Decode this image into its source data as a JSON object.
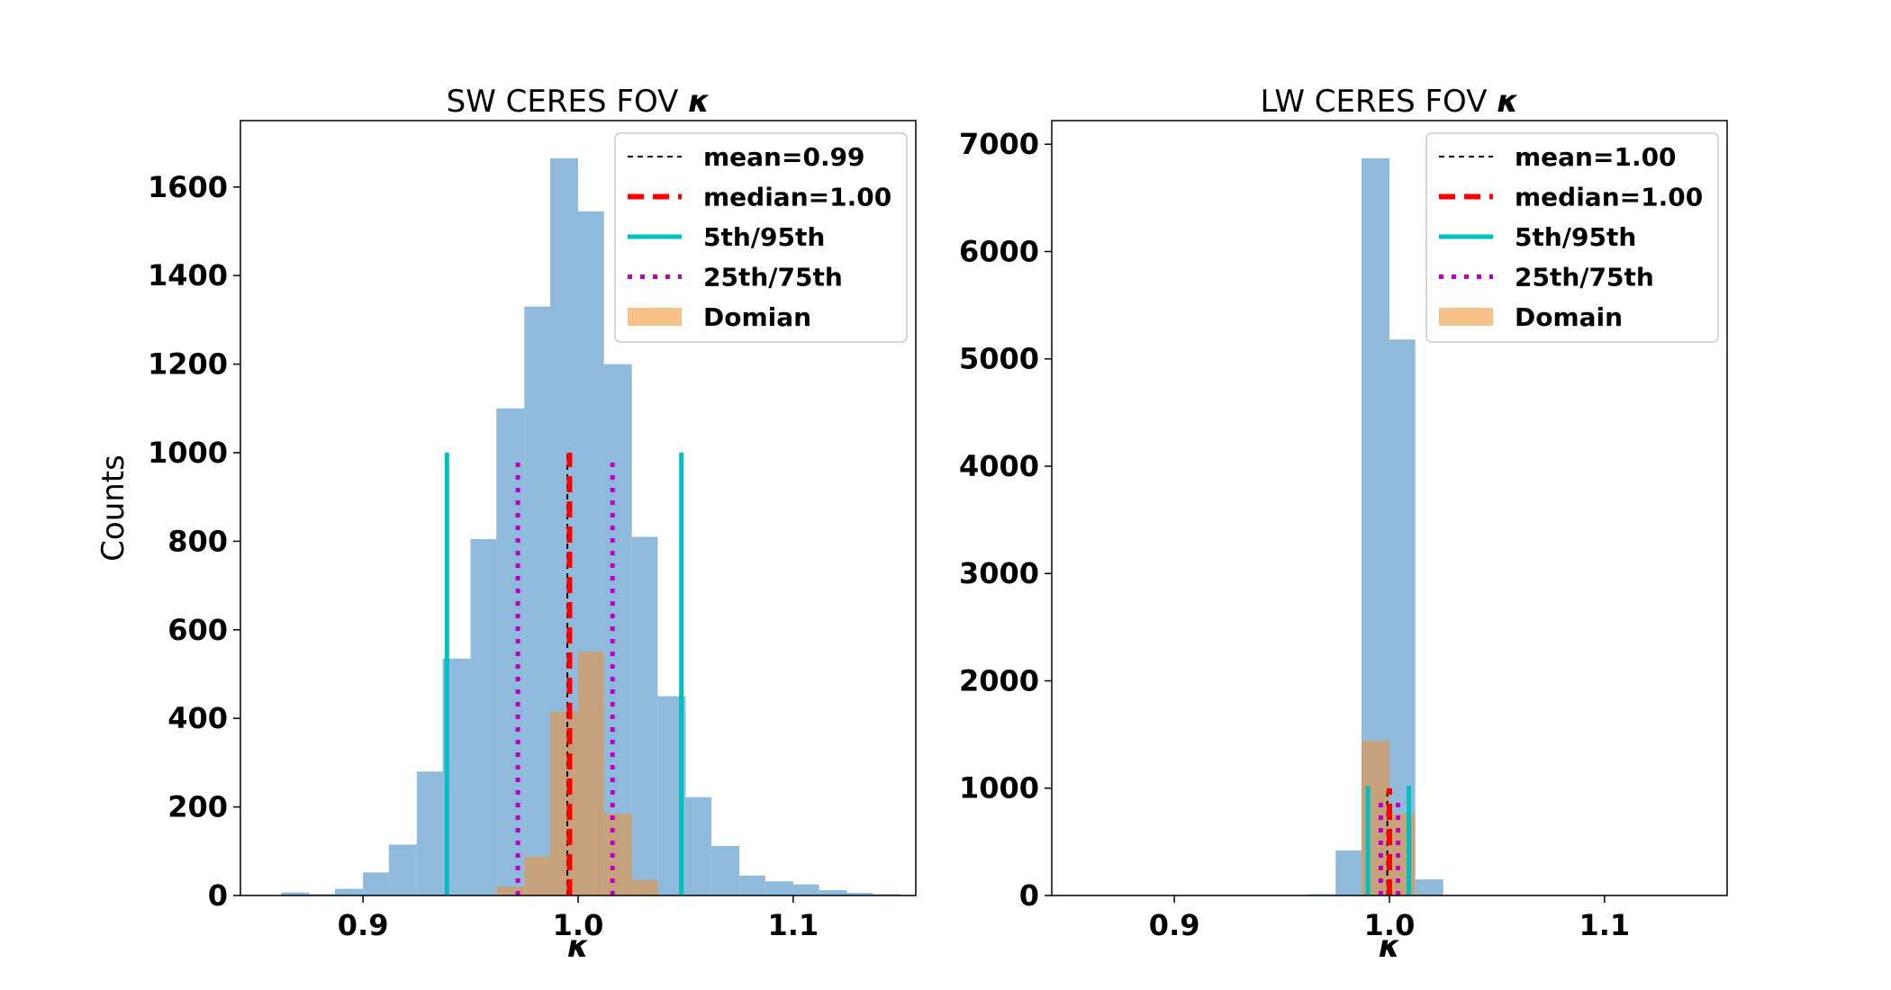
{
  "chart_data": [
    {
      "type": "bar",
      "subtype": "histogram",
      "title": "SW CERES FOV",
      "title_symbol": "κ",
      "xlabel": "κ",
      "ylabel": "Counts",
      "xlim": [
        0.843,
        1.157
      ],
      "ylim": [
        0,
        1750
      ],
      "xticks": [
        0.9,
        1.0,
        1.1
      ],
      "xtick_labels": [
        "0.9",
        "1.0",
        "1.1"
      ],
      "yticks": [
        0,
        200,
        400,
        600,
        800,
        1000,
        1200,
        1400,
        1600
      ],
      "ytick_labels": [
        "0",
        "200",
        "400",
        "600",
        "800",
        "1000",
        "1200",
        "1400",
        "1600"
      ],
      "legend_position": "top-right",
      "series": [
        {
          "name": "Domian",
          "kind": "histogram",
          "color": "#f5a35c",
          "bins": [
            [
              0.85,
              0.862,
              0
            ],
            [
              0.862,
              0.875,
              7
            ],
            [
              0.875,
              0.887,
              3
            ],
            [
              0.887,
              0.9,
              15
            ],
            [
              0.9,
              0.912,
              52
            ],
            [
              0.912,
              0.925,
              115
            ],
            [
              0.925,
              0.937,
              280
            ],
            [
              0.937,
              0.95,
              535
            ],
            [
              0.95,
              0.962,
              805
            ],
            [
              0.962,
              0.975,
              1100
            ],
            [
              0.975,
              0.987,
              1330
            ],
            [
              0.987,
              1.0,
              1665
            ],
            [
              1.0,
              1.012,
              1545
            ],
            [
              1.012,
              1.025,
              1200
            ],
            [
              1.025,
              1.037,
              810
            ],
            [
              1.037,
              1.05,
              450
            ],
            [
              1.05,
              1.062,
              222
            ],
            [
              1.062,
              1.075,
              112
            ],
            [
              1.075,
              1.087,
              45
            ],
            [
              1.087,
              1.1,
              32
            ],
            [
              1.1,
              1.112,
              25
            ],
            [
              1.112,
              1.125,
              12
            ],
            [
              1.125,
              1.137,
              6
            ],
            [
              1.137,
              1.15,
              3
            ]
          ],
          "blue_color": "#7fb0d6"
        },
        {
          "name": "Domian",
          "kind": "histogram-domain",
          "color": "#f5a35c",
          "bins": [
            [
              0.962,
              0.975,
              20
            ],
            [
              0.975,
              0.987,
              88
            ],
            [
              0.987,
              1.0,
              415
            ],
            [
              1.0,
              1.012,
              550
            ],
            [
              1.012,
              1.025,
              185
            ],
            [
              1.025,
              1.037,
              35
            ]
          ]
        }
      ],
      "stat_lines": [
        {
          "name": "mean=0.99",
          "style": "dashed-thin",
          "color": "#000000",
          "x": [
            0.995
          ],
          "height": 1000
        },
        {
          "name": "median=1.00",
          "style": "dashed-thick",
          "color": "#ff0000",
          "x": [
            0.996
          ],
          "height": 1000
        },
        {
          "name": "5th/95th",
          "style": "solid",
          "color": "#00bfbf",
          "x": [
            0.939,
            1.048
          ],
          "height": 1000
        },
        {
          "name": "25th/75th",
          "style": "dotted",
          "color": "#bf00bf",
          "x": [
            0.972,
            1.016
          ],
          "height": 980
        }
      ],
      "legend": [
        "mean=0.99",
        "median=1.00",
        "5th/95th",
        "25th/75th",
        "Domian"
      ]
    },
    {
      "type": "bar",
      "subtype": "histogram",
      "title": "LW CERES FOV",
      "title_symbol": "κ",
      "xlabel": "κ",
      "ylabel": "",
      "xlim": [
        0.843,
        1.157
      ],
      "ylim": [
        0,
        7220
      ],
      "xticks": [
        0.9,
        1.0,
        1.1
      ],
      "xtick_labels": [
        "0.9",
        "1.0",
        "1.1"
      ],
      "yticks": [
        0,
        1000,
        2000,
        3000,
        4000,
        5000,
        6000,
        7000
      ],
      "ytick_labels": [
        "0",
        "1000",
        "2000",
        "3000",
        "4000",
        "5000",
        "6000",
        "7000"
      ],
      "legend_position": "top-right",
      "series": [
        {
          "name": "Domain",
          "kind": "histogram",
          "color": "#f5a35c",
          "bins": [
            [
              0.962,
              0.975,
              12
            ],
            [
              0.975,
              0.987,
              420
            ],
            [
              0.987,
              1.0,
              6870
            ],
            [
              1.0,
              1.012,
              5180
            ],
            [
              1.012,
              1.025,
              150
            ]
          ],
          "blue_color": "#7fb0d6"
        },
        {
          "name": "Domain",
          "kind": "histogram-domain",
          "color": "#f5a35c",
          "bins": [
            [
              0.987,
              1.0,
              1440
            ],
            [
              1.0,
              1.012,
              760
            ]
          ]
        }
      ],
      "stat_lines": [
        {
          "name": "mean=1.00",
          "style": "dashed-thin",
          "color": "#000000",
          "x": [
            0.999
          ],
          "height": 1000
        },
        {
          "name": "median=1.00",
          "style": "dashed-thick",
          "color": "#ff0000",
          "x": [
            1.0
          ],
          "height": 1000
        },
        {
          "name": "5th/95th",
          "style": "solid",
          "color": "#00bfbf",
          "x": [
            0.99,
            1.009
          ],
          "height": 1020
        },
        {
          "name": "25th/75th",
          "style": "dotted",
          "color": "#bf00bf",
          "x": [
            0.996,
            1.004
          ],
          "height": 940
        }
      ],
      "legend": [
        "mean=1.00",
        "median=1.00",
        "5th/95th",
        "25th/75th",
        "Domain"
      ]
    }
  ]
}
